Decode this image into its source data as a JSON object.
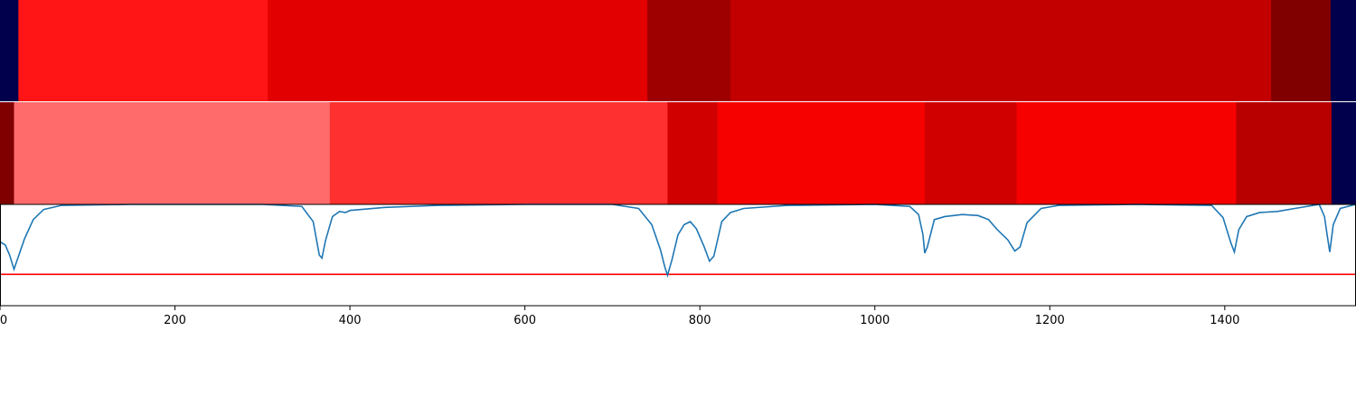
{
  "chart_data": [
    {
      "type": "heatmap",
      "panel": "top-segment-bar",
      "xlim": [
        0,
        1550
      ],
      "segments": [
        {
          "start": 0,
          "end": 21,
          "color": "#00004c"
        },
        {
          "start": 21,
          "end": 306,
          "color": "#ff1515"
        },
        {
          "start": 306,
          "end": 740,
          "color": "#e30000"
        },
        {
          "start": 740,
          "end": 835,
          "color": "#9e0000"
        },
        {
          "start": 835,
          "end": 1453,
          "color": "#c20000"
        },
        {
          "start": 1453,
          "end": 1521,
          "color": "#800000"
        },
        {
          "start": 1521,
          "end": 1550,
          "color": "#00004c"
        }
      ]
    },
    {
      "type": "heatmap",
      "panel": "middle-segment-bar",
      "xlim": [
        0,
        1550
      ],
      "segments": [
        {
          "start": 0,
          "end": 16,
          "color": "#800000"
        },
        {
          "start": 16,
          "end": 377,
          "color": "#ff6b6b"
        },
        {
          "start": 377,
          "end": 763,
          "color": "#ff3030"
        },
        {
          "start": 763,
          "end": 820,
          "color": "#d10000"
        },
        {
          "start": 820,
          "end": 1057,
          "color": "#f70000"
        },
        {
          "start": 1057,
          "end": 1162,
          "color": "#d10000"
        },
        {
          "start": 1162,
          "end": 1413,
          "color": "#f70000"
        },
        {
          "start": 1413,
          "end": 1522,
          "color": "#b80000"
        },
        {
          "start": 1522,
          "end": 1550,
          "color": "#00004c"
        }
      ]
    },
    {
      "type": "line",
      "panel": "signal-line",
      "xlim": [
        0,
        1550
      ],
      "ylim": [
        0,
        1
      ],
      "grid": false,
      "x_ticks": [
        0,
        200,
        400,
        600,
        800,
        1000,
        1200,
        1400
      ],
      "x_tick_labels": [
        "0",
        "200",
        "400",
        "600",
        "800",
        "1000",
        "1200",
        "1400"
      ],
      "threshold": {
        "y": 0.31,
        "color": "#ff0000"
      },
      "series": [
        {
          "color": "#1f77b4",
          "points": [
            [
              0,
              0.63
            ],
            [
              6,
              0.6
            ],
            [
              11,
              0.5
            ],
            [
              16,
              0.36
            ],
            [
              20,
              0.46
            ],
            [
              28,
              0.66
            ],
            [
              38,
              0.85
            ],
            [
              50,
              0.95
            ],
            [
              70,
              0.99
            ],
            [
              150,
              1.0
            ],
            [
              300,
              1.0
            ],
            [
              345,
              0.98
            ],
            [
              358,
              0.83
            ],
            [
              365,
              0.5
            ],
            [
              368,
              0.47
            ],
            [
              372,
              0.64
            ],
            [
              380,
              0.88
            ],
            [
              388,
              0.93
            ],
            [
              395,
              0.92
            ],
            [
              400,
              0.94
            ],
            [
              440,
              0.97
            ],
            [
              500,
              0.99
            ],
            [
              600,
              1.0
            ],
            [
              700,
              1.0
            ],
            [
              730,
              0.96
            ],
            [
              745,
              0.8
            ],
            [
              755,
              0.55
            ],
            [
              760,
              0.38
            ],
            [
              763,
              0.3
            ],
            [
              768,
              0.45
            ],
            [
              775,
              0.7
            ],
            [
              782,
              0.8
            ],
            [
              789,
              0.83
            ],
            [
              796,
              0.76
            ],
            [
              805,
              0.58
            ],
            [
              811,
              0.44
            ],
            [
              816,
              0.49
            ],
            [
              825,
              0.83
            ],
            [
              835,
              0.92
            ],
            [
              850,
              0.96
            ],
            [
              900,
              0.99
            ],
            [
              1000,
              1.0
            ],
            [
              1040,
              0.98
            ],
            [
              1050,
              0.9
            ],
            [
              1055,
              0.7
            ],
            [
              1057,
              0.52
            ],
            [
              1060,
              0.58
            ],
            [
              1068,
              0.85
            ],
            [
              1080,
              0.88
            ],
            [
              1100,
              0.9
            ],
            [
              1118,
              0.89
            ],
            [
              1130,
              0.85
            ],
            [
              1140,
              0.75
            ],
            [
              1152,
              0.65
            ],
            [
              1160,
              0.54
            ],
            [
              1166,
              0.58
            ],
            [
              1174,
              0.82
            ],
            [
              1190,
              0.96
            ],
            [
              1210,
              0.99
            ],
            [
              1300,
              1.0
            ],
            [
              1385,
              0.99
            ],
            [
              1398,
              0.87
            ],
            [
              1407,
              0.62
            ],
            [
              1411,
              0.53
            ],
            [
              1416,
              0.75
            ],
            [
              1425,
              0.88
            ],
            [
              1440,
              0.92
            ],
            [
              1460,
              0.93
            ],
            [
              1480,
              0.96
            ],
            [
              1508,
              1.0
            ],
            [
              1514,
              0.88
            ],
            [
              1517,
              0.7
            ],
            [
              1520,
              0.53
            ],
            [
              1524,
              0.8
            ],
            [
              1532,
              0.96
            ],
            [
              1545,
              0.99
            ],
            [
              1550,
              1.0
            ]
          ]
        }
      ]
    }
  ]
}
